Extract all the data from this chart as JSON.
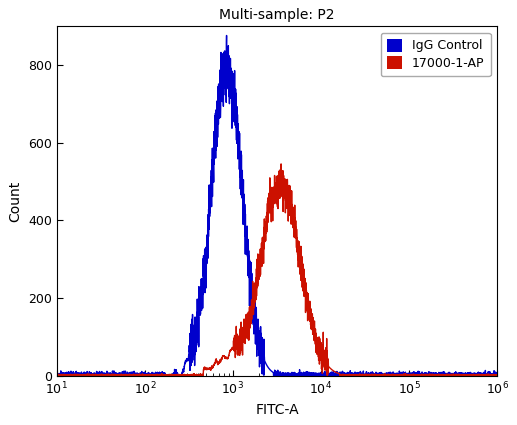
{
  "title": "Multi-sample: P2",
  "xlabel": "FITC-A",
  "ylabel": "Count",
  "xlim_log": [
    10,
    1000000
  ],
  "ylim": [
    0,
    900
  ],
  "yticks": [
    0,
    200,
    400,
    600,
    800
  ],
  "background_color": "#ffffff",
  "blue_series": {
    "label": "IgG Control",
    "color": "#0000cc",
    "peak_log_x": 850,
    "peak_y": 790,
    "sigma_log": 0.175,
    "noise_scale": 0.04,
    "base_noise": 4.0,
    "linewidth": 1.0
  },
  "red_series": {
    "label": "17000-1-AP",
    "color": "#cc1100",
    "peak_log_x": 3500,
    "peak_y": 490,
    "sigma_log": 0.22,
    "noise_scale": 0.04,
    "base_noise": 1.5,
    "linewidth": 1.0
  },
  "title_fontsize": 10,
  "axis_label_fontsize": 10,
  "tick_fontsize": 9,
  "legend_fontsize": 9,
  "fig_width": 5.17,
  "fig_height": 4.25,
  "dpi": 100
}
